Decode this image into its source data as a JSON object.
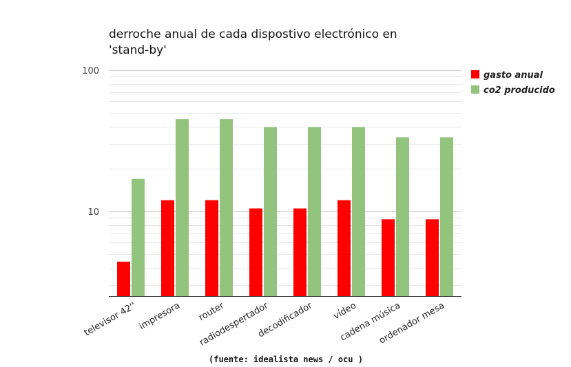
{
  "chart_data": {
    "type": "bar",
    "title_lines": [
      "derroche anual de cada dispostivo electrónico en",
      "'stand-by'"
    ],
    "categories": [
      "televisor 42''",
      "impresora",
      "router",
      "radiodespertador",
      "decodificador",
      "vídeo",
      "cadena música",
      "ordenador mesa"
    ],
    "series": [
      {
        "name": "gasto anual",
        "color": "#ff0000",
        "values": [
          4.4,
          12,
          12,
          10.5,
          10.5,
          12,
          8.8,
          8.8
        ]
      },
      {
        "name": "co2 producido",
        "color": "#92c47d",
        "values": [
          17,
          45,
          45,
          39.5,
          39.5,
          39.5,
          33.5,
          33.5
        ]
      }
    ],
    "yscale": "log",
    "ylim": [
      2.5,
      100
    ],
    "yticks": [
      10,
      100
    ],
    "ytick_labels": [
      "10",
      "100"
    ],
    "grid": true,
    "legend_position": "top-right",
    "source": "(fuente: idealista news / ocu )"
  }
}
